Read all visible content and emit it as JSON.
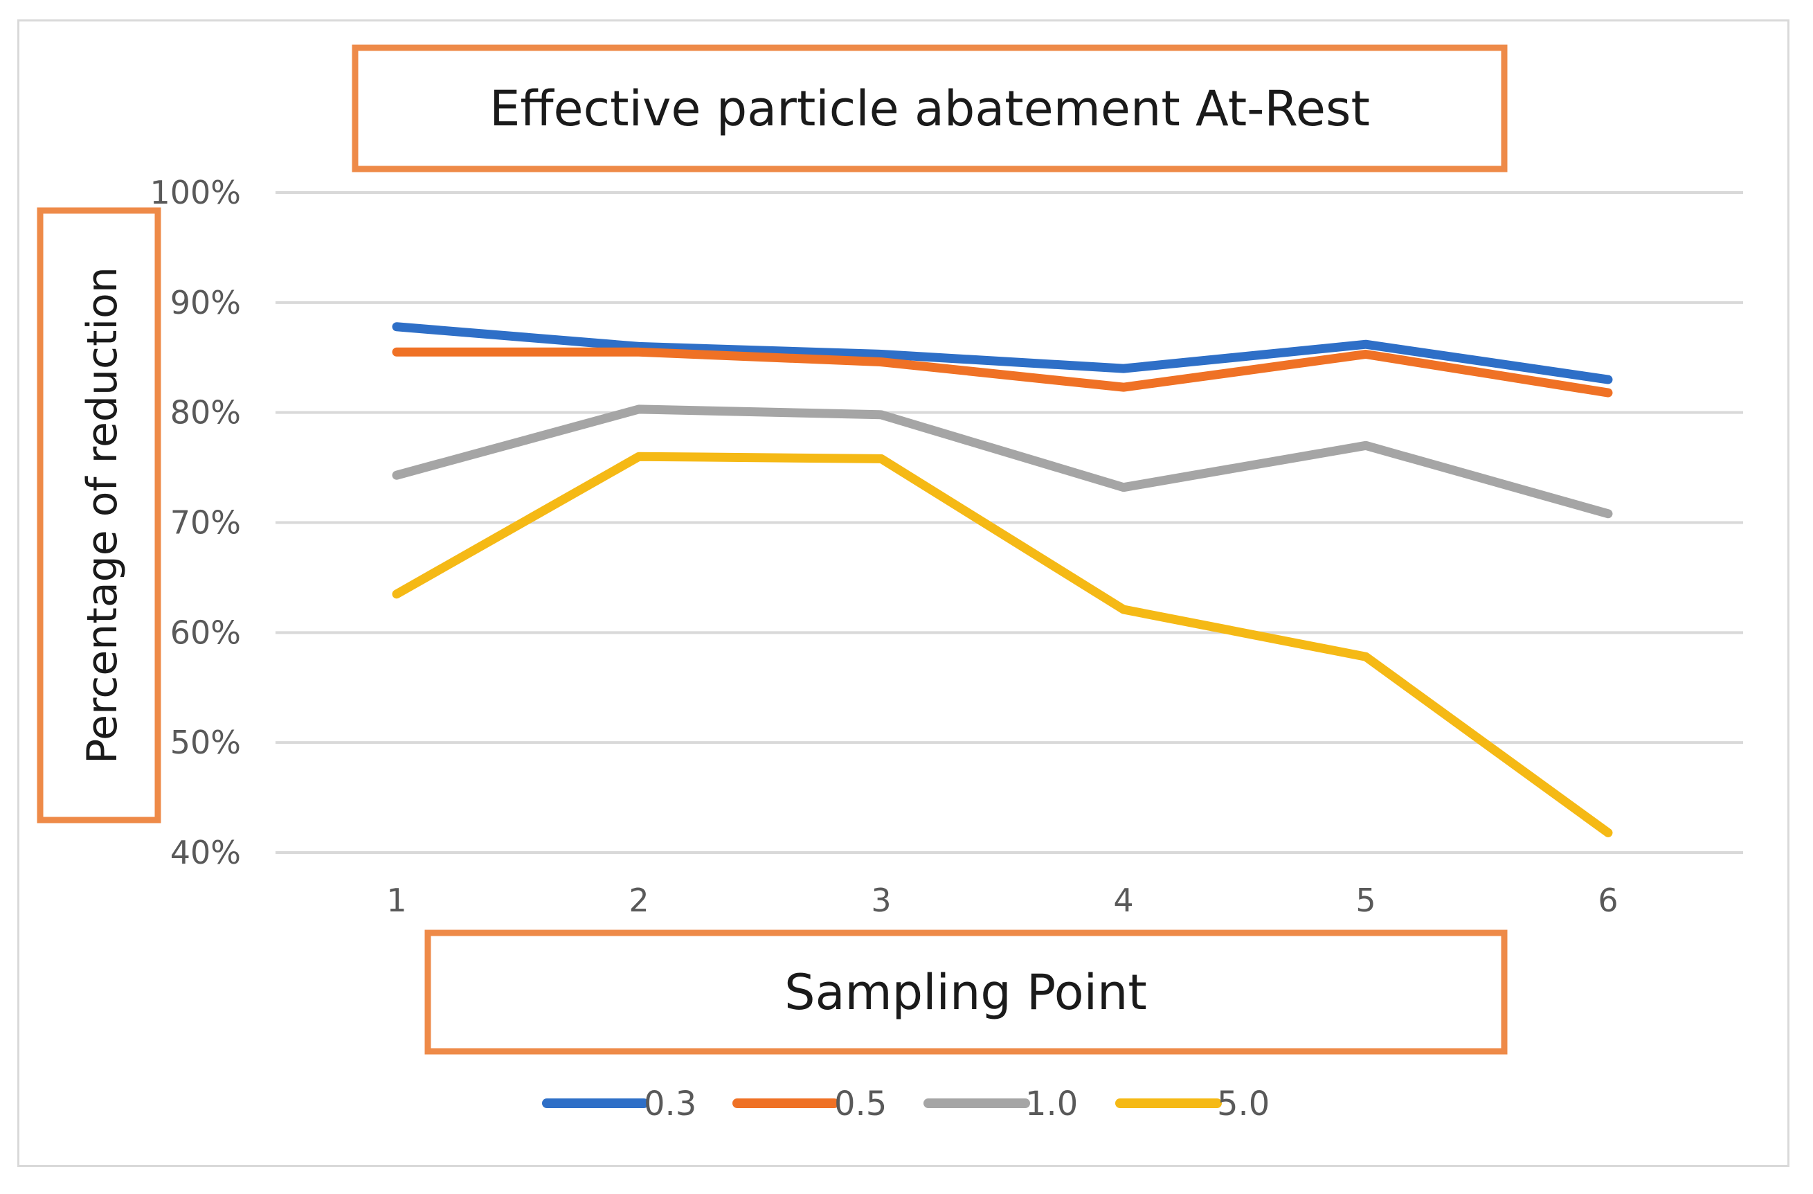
{
  "chart_data": {
    "type": "line",
    "title": "Effective particle abatement At-Rest",
    "xlabel": "Sampling Point",
    "ylabel": "Percentage of reduction",
    "categories": [
      "1",
      "2",
      "3",
      "4",
      "5",
      "6"
    ],
    "ylim": [
      40,
      100
    ],
    "yticks": [
      100,
      90,
      80,
      70,
      60,
      50,
      40
    ],
    "ytick_labels": [
      "100%",
      "90%",
      "80%",
      "70%",
      "60%",
      "50%",
      "40%"
    ],
    "grid": true,
    "legend_position": "bottom",
    "series": [
      {
        "name": "0.3",
        "color": "#2e6fc7",
        "values": [
          87.8,
          86.0,
          85.3,
          84.0,
          86.2,
          83.0
        ]
      },
      {
        "name": "0.5",
        "color": "#ef7125",
        "values": [
          85.5,
          85.5,
          84.6,
          82.3,
          85.3,
          81.8
        ]
      },
      {
        "name": "1.0",
        "color": "#a5a5a5",
        "values": [
          74.3,
          80.3,
          79.8,
          73.2,
          77.0,
          70.8
        ]
      },
      {
        "name": "5.0",
        "color": "#f5b915",
        "values": [
          63.5,
          76.0,
          75.8,
          62.1,
          57.8,
          41.8
        ]
      }
    ]
  }
}
